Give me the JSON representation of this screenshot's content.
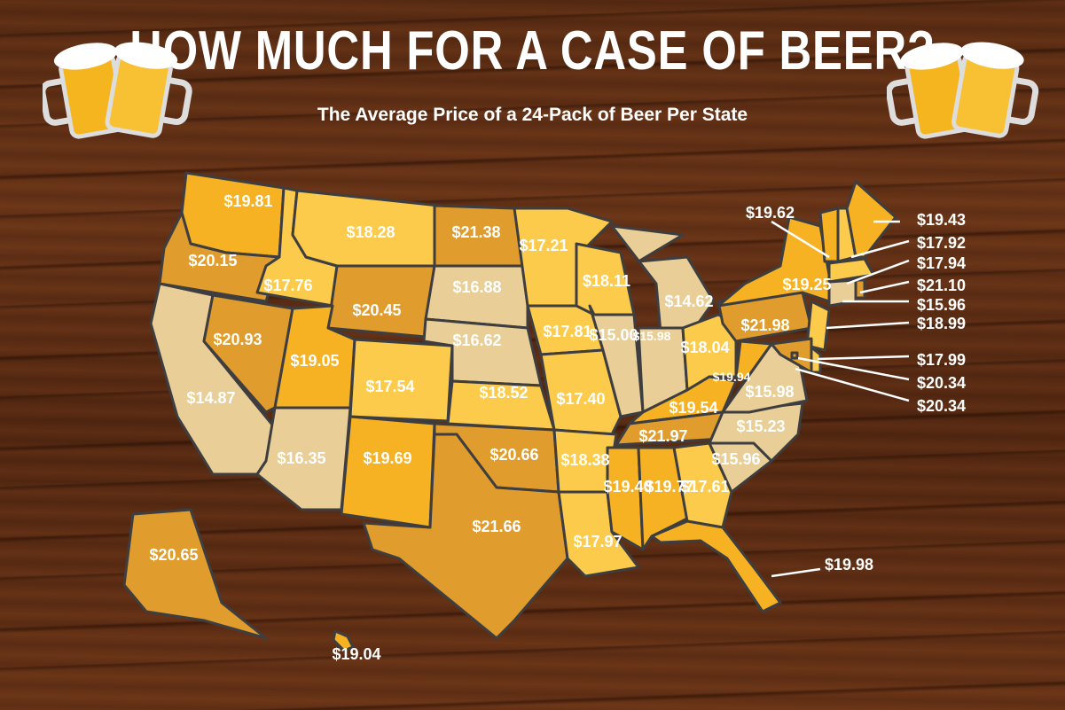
{
  "title": "HOW MUCH FOR A CASE OF BEER?",
  "subtitle": "The Average Price of a 24-Pack of Beer Per State",
  "icons": [
    "beer-mugs-left-icon",
    "beer-mugs-right-icon"
  ],
  "colors": {
    "low": "#e9cf97",
    "mid": "#fdcb4b",
    "high": "#f6b223",
    "top": "#e09c2c",
    "border": "#3e3e40",
    "label": "#ffffff"
  },
  "prices": {
    "WA": "$19.81",
    "OR": "$20.15",
    "CA": "$14.87",
    "ID": "$17.76",
    "NV": "$20.93",
    "MT": "$18.28",
    "WY": "$20.45",
    "UT": "$19.05",
    "AZ": "$16.35",
    "CO": "$17.54",
    "NM": "$19.69",
    "ND": "$21.38",
    "SD": "$16.88",
    "NE": "$16.62",
    "KS": "$18.52",
    "OK": "$20.66",
    "TX": "$21.66",
    "MN": "$17.21",
    "IA": "$17.81",
    "MO": "$17.40",
    "AR": "$18.38",
    "LA": "$17.97",
    "WI": "$18.11",
    "IL": "$15.00",
    "MI": "$14.62",
    "IN": "$15.98",
    "OH": "$18.04",
    "KY": "$19.54",
    "TN": "$21.97",
    "MS": "$19.40",
    "AL": "$19.77",
    "GA": "$17.61",
    "FL": "$19.98",
    "SC": "$15.96",
    "NC": "$15.23",
    "VA": "$15.98",
    "WV": "$19.94",
    "PA": "$21.98",
    "NY": "$19.25",
    "VT": "$19.62",
    "ME": "$19.43",
    "NH": "$17.92",
    "MA": "$17.94",
    "RI": "$21.10",
    "CT": "$15.96",
    "NJ": "$18.99",
    "DE": "$17.99",
    "MD": "$20.34",
    "DC": "$20.34",
    "AK": "$20.65",
    "HI": "$19.04"
  }
}
